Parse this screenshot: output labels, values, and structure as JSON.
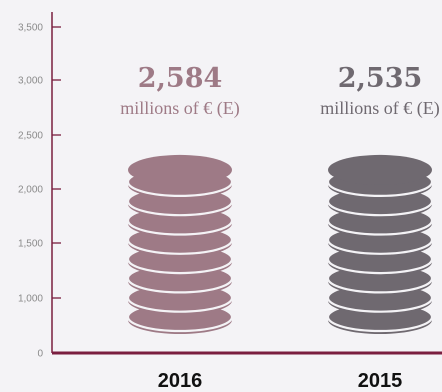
{
  "chart_data": {
    "type": "bar",
    "categories": [
      "2016",
      "2015"
    ],
    "values": [
      2584,
      2535
    ],
    "value_labels": [
      "2,584",
      "2,535"
    ],
    "unit_label": "millions of € (E)",
    "y_ticks": [
      "0",
      "1,000",
      "1,500",
      "2,000",
      "2,500",
      "3,000",
      "3,500"
    ],
    "ylim": [
      0,
      3500
    ],
    "grid": false,
    "bar_style": "stacked-coins"
  },
  "colors": {
    "background": "#f4f3f6",
    "axis": "#7a1e3f",
    "series": [
      "#9e7a86",
      "#6f6970"
    ],
    "series_label": [
      "#9e7a86",
      "#6f6970"
    ]
  }
}
